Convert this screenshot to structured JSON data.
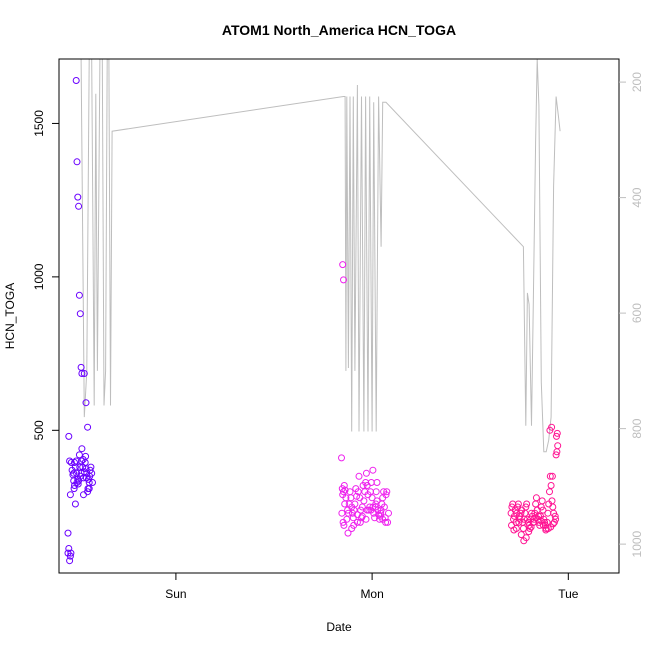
{
  "chart_data": {
    "type": "scatter",
    "title": "ATOM1 North_America HCN_TOGA",
    "xlabel": "Date",
    "ylabel": "HCN_TOGA",
    "x_ticks": [
      "Sun",
      "Mon",
      "Tue"
    ],
    "y_ticks": [
      500,
      1000,
      1500
    ],
    "y_right_ticks": [
      200,
      400,
      600,
      800,
      1000
    ],
    "xlim_hours": [
      -14.3,
      54.2
    ],
    "ylim": [
      35,
      1710
    ],
    "y_right_lim": [
      1050,
      160
    ],
    "colors": {
      "day1": "#6a00ff",
      "day2": "#ee22ee",
      "day3": "#ff1493",
      "line": "#bebebe",
      "axis": "#000000",
      "axis_right": "#bebebe"
    },
    "line_series_right_axis": {
      "hour": [
        -12.0,
        -11.6,
        -11.2,
        -10.9,
        -10.6,
        -10.3,
        -10.0,
        -9.8,
        -9.6,
        -9.3,
        -9.0,
        -8.8,
        -8.6,
        -8.4,
        -8.2,
        -8.0,
        -7.8,
        20.5,
        20.7,
        20.8,
        20.9,
        21.1,
        21.3,
        21.5,
        21.7,
        21.9,
        22.2,
        22.4,
        22.7,
        23.0,
        23.2,
        23.5,
        23.7,
        24.0,
        24.2,
        24.5,
        24.8,
        25.1,
        25.3,
        25.7,
        42.5,
        42.8,
        43.0,
        43.2,
        43.5,
        43.7,
        44.0,
        44.2,
        44.4,
        44.7,
        45.0,
        45.3,
        45.6,
        45.9,
        46.2,
        46.5,
        46.8,
        47.0
      ],
      "value": [
        160,
        160,
        780,
        700,
        160,
        160,
        760,
        220,
        700,
        160,
        160,
        760,
        700,
        160,
        160,
        760,
        285,
        225,
        225,
        700,
        225,
        695,
        225,
        805,
        225,
        700,
        205,
        805,
        225,
        805,
        225,
        805,
        225,
        805,
        235,
        805,
        225,
        485,
        235,
        235,
        485,
        795,
        565,
        585,
        795,
        595,
        305,
        160,
        240,
        720,
        840,
        840,
        820,
        780,
        380,
        225,
        260,
        285
      ]
    },
    "scatter_series": [
      {
        "hour": [
          -13.2,
          -13.1,
          -13.0,
          -12.9,
          -12.85,
          -12.8,
          -12.7,
          -12.6,
          -12.5,
          -12.45,
          -12.4,
          -12.3,
          -12.2,
          -12.15,
          -12.1,
          -12.0,
          -11.95,
          -11.9,
          -11.8,
          -11.75,
          -11.7,
          -11.6,
          -11.55,
          -11.5,
          -11.4,
          -11.35,
          -11.3,
          -11.2,
          -11.1,
          -11.05,
          -11.0,
          -10.95,
          -10.9,
          -10.8,
          -10.75,
          -10.7,
          -10.6,
          -10.55,
          -10.5,
          -10.4,
          -10.3,
          -10.2,
          -13.2,
          -13.1,
          -13.0,
          -12.4,
          -12.3,
          -12.2,
          -12.1,
          -12.0,
          -11.9,
          -11.8,
          -11.7,
          -11.6,
          -11.5,
          -11.2,
          -11.0,
          -12.9,
          -12.5,
          -11.3,
          -10.8,
          -10.6
        ],
        "value": [
          100,
          115,
          75,
          90,
          100,
          395,
          370,
          355,
          335,
          310,
          320,
          380,
          400,
          360,
          330,
          340,
          325,
          335,
          420,
          380,
          350,
          360,
          400,
          440,
          380,
          405,
          345,
          365,
          395,
          415,
          375,
          345,
          360,
          300,
          310,
          340,
          330,
          350,
          370,
          380,
          360,
          330,
          165,
          480,
          400,
          395,
          260,
          1640,
          1375,
          1260,
          1230,
          940,
          880,
          705,
          685,
          685,
          590,
          290,
          360,
          290,
          510,
          310
        ]
      },
      {
        "hour": [
          20.3,
          20.4,
          20.5,
          20.6,
          20.7,
          20.8,
          20.9,
          21.0,
          21.1,
          21.2,
          21.3,
          21.4,
          21.5,
          21.6,
          21.7,
          21.8,
          21.9,
          22.0,
          22.1,
          22.2,
          22.3,
          22.4,
          22.5,
          22.6,
          22.7,
          22.8,
          22.9,
          23.0,
          23.1,
          23.2,
          23.3,
          23.4,
          23.5,
          23.6,
          23.7,
          23.8,
          23.9,
          24.0,
          24.1,
          24.2,
          24.3,
          24.4,
          24.5,
          24.6,
          24.7,
          24.8,
          24.9,
          25.0,
          25.1,
          25.2,
          25.3,
          25.4,
          25.5,
          25.6,
          25.7,
          25.8,
          26.0,
          20.35,
          20.45,
          21.5,
          22.2,
          22.8,
          23.4,
          24.1,
          24.6,
          25.3,
          25.9,
          20.55,
          21.05,
          21.75,
          22.55,
          23.25,
          23.85,
          24.45,
          25.05,
          25.65,
          20.25,
          20.65,
          20.4,
          20.5
        ],
        "value": [
          230,
          290,
          300,
          320,
          305,
          280,
          210,
          240,
          230,
          260,
          300,
          280,
          250,
          230,
          215,
          240,
          260,
          310,
          285,
          225,
          300,
          350,
          280,
          240,
          215,
          250,
          320,
          270,
          300,
          330,
          360,
          320,
          290,
          240,
          250,
          300,
          330,
          280,
          250,
          230,
          215,
          250,
          300,
          270,
          240,
          225,
          210,
          220,
          240,
          260,
          280,
          300,
          250,
          215,
          290,
          300,
          230,
          310,
          200,
          180,
          200,
          220,
          240,
          370,
          330,
          210,
          200,
          190,
          165,
          190,
          200,
          210,
          240,
          260,
          230,
          200,
          410,
          260,
          1040,
          990
        ]
      },
      {
        "hour": [
          41.0,
          41.1,
          41.2,
          41.3,
          41.4,
          41.5,
          41.6,
          41.7,
          41.8,
          41.9,
          42.0,
          42.1,
          42.2,
          42.3,
          42.4,
          42.5,
          42.6,
          42.7,
          42.8,
          42.9,
          43.0,
          43.1,
          43.2,
          43.3,
          43.4,
          43.5,
          43.6,
          43.7,
          43.8,
          43.9,
          44.0,
          44.1,
          44.2,
          44.3,
          44.4,
          44.5,
          44.6,
          44.7,
          44.8,
          44.9,
          45.0,
          45.1,
          45.2,
          45.3,
          45.4,
          45.5,
          45.6,
          45.7,
          45.8,
          45.9,
          46.0,
          46.1,
          46.2,
          46.3,
          46.4,
          41.05,
          41.35,
          41.65,
          41.95,
          42.25,
          42.55,
          42.85,
          43.15,
          43.45,
          43.75,
          44.05,
          44.35,
          44.65,
          44.95,
          45.25,
          45.55,
          45.85,
          46.15,
          46.45,
          46.5,
          46.6,
          46.7,
          46.55,
          46.65,
          45.75,
          45.95,
          46.05
        ],
        "value": [
          230,
          250,
          260,
          210,
          220,
          240,
          200,
          230,
          250,
          260,
          220,
          210,
          230,
          240,
          200,
          180,
          210,
          230,
          250,
          260,
          210,
          200,
          190,
          180,
          210,
          230,
          220,
          200,
          210,
          230,
          260,
          280,
          240,
          210,
          200,
          190,
          220,
          250,
          270,
          240,
          210,
          200,
          190,
          180,
          200,
          230,
          260,
          300,
          350,
          320,
          270,
          250,
          230,
          200,
          220,
          190,
          175,
          180,
          200,
          160,
          140,
          150,
          170,
          185,
          200,
          215,
          220,
          205,
          190,
          175,
          180,
          185,
          195,
          210,
          420,
          430,
          450,
          480,
          490,
          500,
          510,
          350
        ]
      }
    ]
  }
}
